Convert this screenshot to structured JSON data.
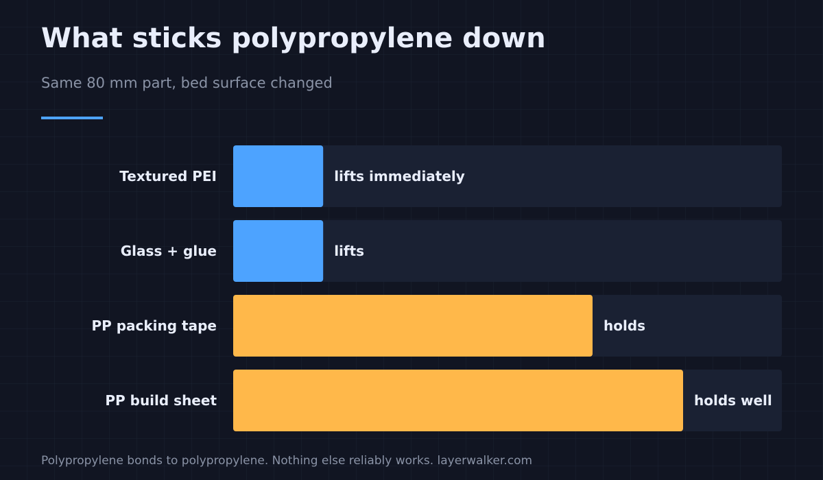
{
  "chart_data": {
    "type": "bar",
    "orientation": "horizontal",
    "title": "What sticks polypropylene down",
    "subtitle": "Same 80 mm part, bed surface changed",
    "categories": [
      "Textured PEI",
      "Glass + glue",
      "PP packing tape",
      "PP build sheet"
    ],
    "values": [
      16.4,
      16.4,
      65.5,
      82
    ],
    "labels": [
      "lifts immediately",
      "lifts",
      "holds",
      "holds well"
    ],
    "colors": [
      "#4da3ff",
      "#4da3ff",
      "#ffb84a",
      "#ffb84a"
    ],
    "xlim": [
      0,
      100
    ],
    "footer": "Polypropylene bonds to polypropylene. Nothing else reliably works. layerwalker.com"
  }
}
